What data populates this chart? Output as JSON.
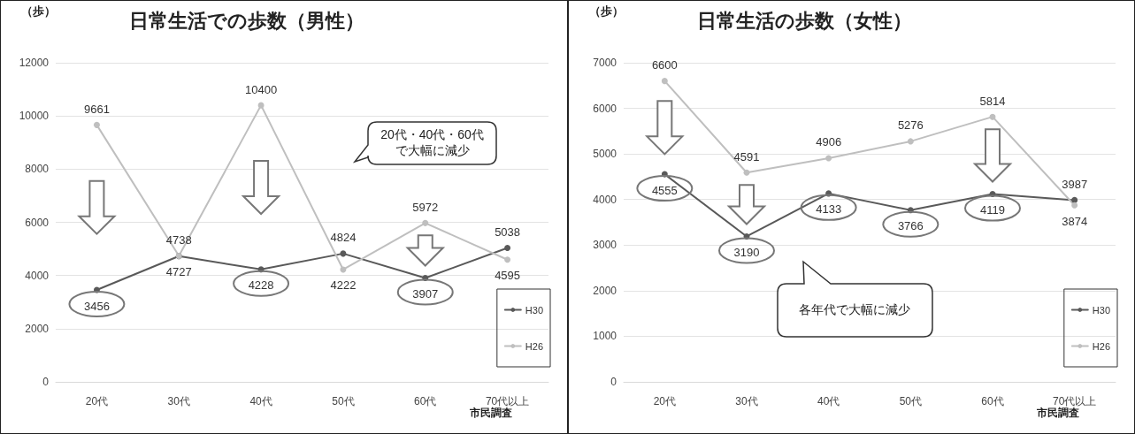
{
  "chart_data": [
    {
      "type": "line",
      "title": "日常生活での歩数（男性）",
      "ylabel": "（歩）",
      "categories": [
        "20代",
        "30代",
        "40代",
        "50代",
        "60代",
        "70代以上"
      ],
      "series": [
        {
          "name": "H30",
          "color": "#595959",
          "values": [
            3456,
            4727,
            4228,
            4824,
            3907,
            5038
          ]
        },
        {
          "name": "H26",
          "color": "#bfbfbf",
          "values": [
            9661,
            4738,
            10400,
            4222,
            5972,
            4595
          ]
        }
      ],
      "ylim": [
        0,
        12000
      ],
      "yticks": [
        0,
        2000,
        4000,
        6000,
        8000,
        10000,
        12000
      ],
      "grid": "y",
      "legend": "bottom right",
      "marker": "circle",
      "line_style": "solid",
      "data_labels": true,
      "annotations": [
        "20代・40代・60代で大幅に減少",
        "市民調査"
      ]
    },
    {
      "type": "line",
      "title": "日常生活の歩数（女性）",
      "ylabel": "（歩）",
      "categories": [
        "20代",
        "30代",
        "40代",
        "50代",
        "60代",
        "70代以上"
      ],
      "series": [
        {
          "name": "H30",
          "color": "#595959",
          "values": [
            4555,
            3190,
            4133,
            3766,
            4119,
            3987
          ]
        },
        {
          "name": "H26",
          "color": "#bfbfbf",
          "values": [
            6600,
            4591,
            4906,
            5276,
            5814,
            3874
          ]
        }
      ],
      "ylim": [
        0,
        7000
      ],
      "yticks": [
        0,
        1000,
        2000,
        3000,
        4000,
        5000,
        6000,
        7000
      ],
      "grid": "y",
      "legend": "bottom right",
      "marker": "circle",
      "line_style": "solid",
      "data_labels": true,
      "annotations": [
        "各年代で大幅に減少",
        "市民調査"
      ]
    }
  ]
}
